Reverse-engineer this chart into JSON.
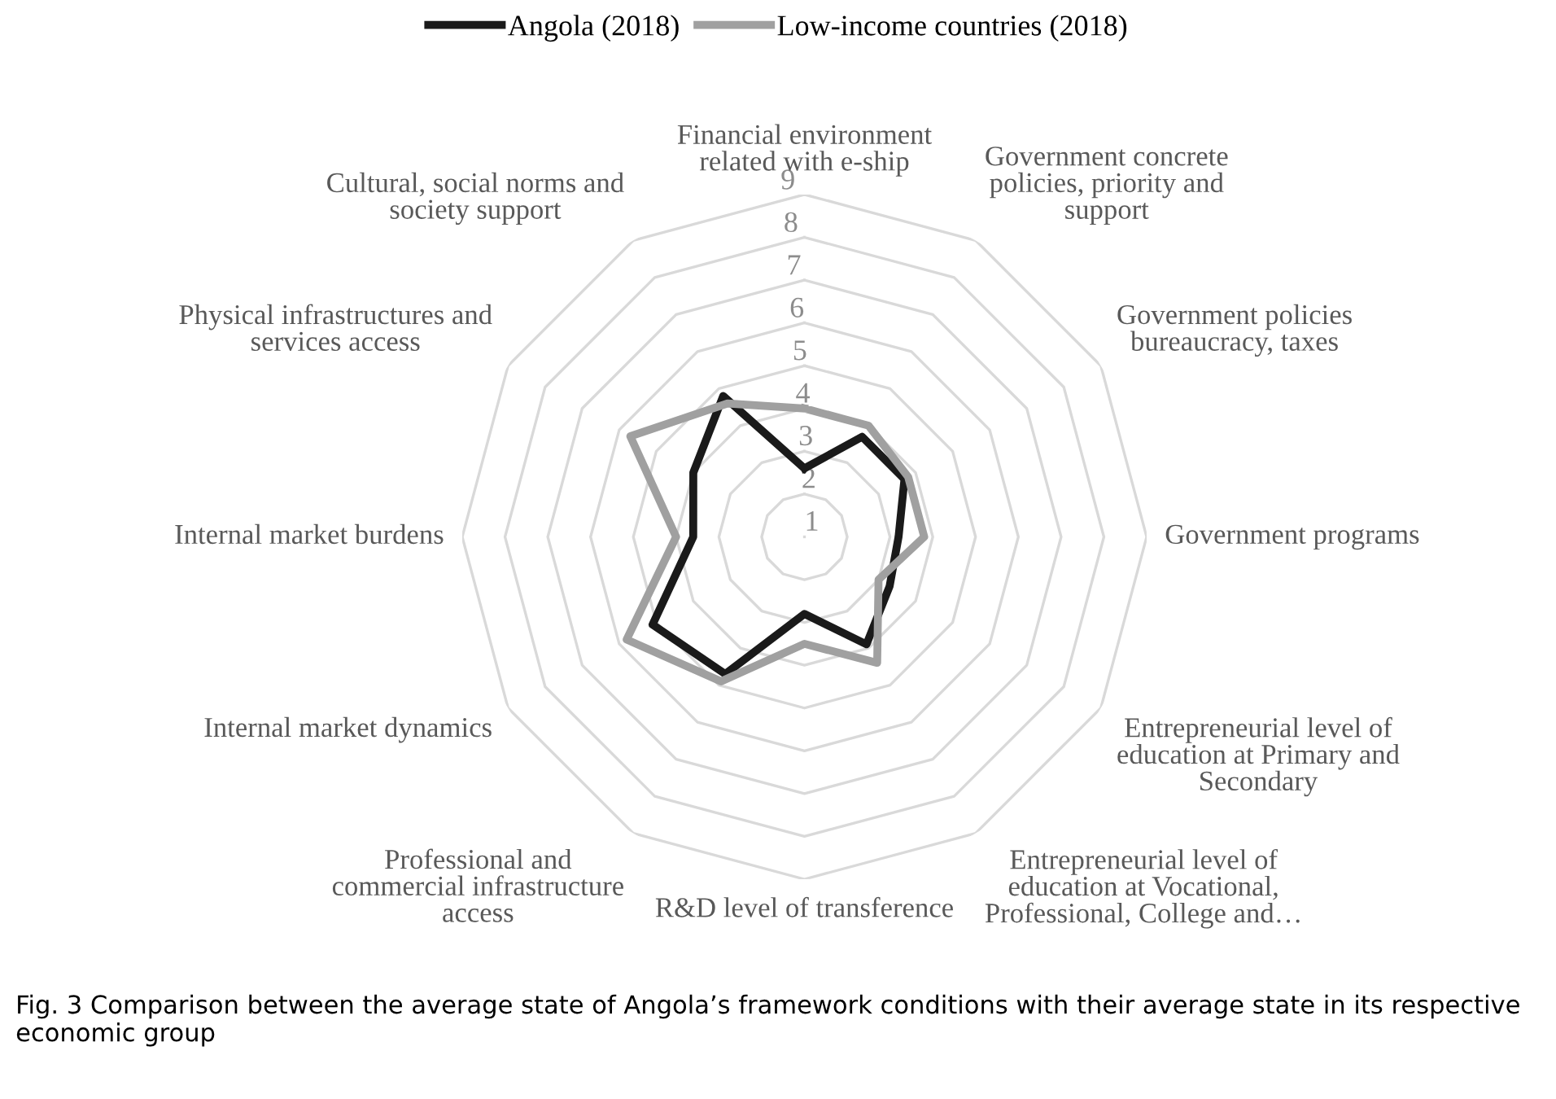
{
  "chart_data": {
    "type": "radar",
    "categories": [
      "Financial environment\nrelated with e-ship",
      "Government concrete\npolicies, priority and\nsupport",
      "Government policies\nbureaucracy, taxes",
      "Government programs",
      "Entrepreneurial level of\neducation at Primary and\nSecondary",
      "Entrepreneurial level of\neducation at Vocational,\nProfessional, College and…",
      "R&D level of transference",
      "Professional and\ncommercial infrastructure\naccess",
      "Internal market dynamics",
      "Internal market burdens",
      "Physical infrastructures and\nservices access",
      "Cultural, social norms and\nsociety support"
    ],
    "series": [
      {
        "name": "Angola (2018)",
        "color": "#1a1a1a",
        "values": [
          2.6,
          3.7,
          3.7,
          3.2,
          3.3,
          3.9,
          2.8,
          4.7,
          5.1,
          3.6,
          4.0,
          4.8
        ]
      },
      {
        "name": "Low-income countries (2018)",
        "color": "#a0a0a0",
        "values": [
          4.0,
          4.0,
          3.8,
          3.8,
          3.0,
          4.4,
          3.5,
          4.9,
          5.8,
          4.0,
          5.7,
          4.6
        ]
      }
    ],
    "ylim": [
      1,
      9
    ],
    "yticks": [
      1,
      2,
      3,
      4,
      5,
      6,
      7,
      8,
      9
    ],
    "grid": true,
    "legend": "top",
    "marker": "none",
    "line_style": "solid",
    "annotations": [
      "Fig. 3 Comparison between the average state of Angola’s framework conditions with their average state in its respective economic group"
    ]
  }
}
